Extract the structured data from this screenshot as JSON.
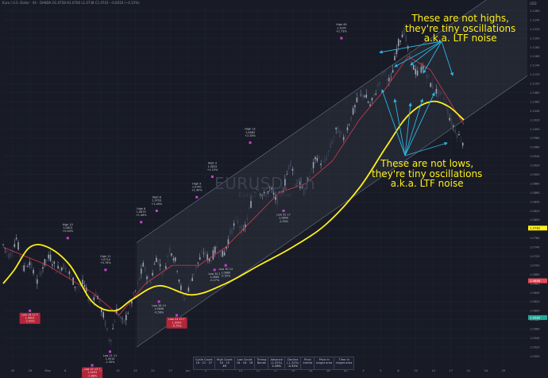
{
  "header": {
    "title": "Euro / U.S. Dollar · 4h · OANDA",
    "ohlc": "O1.0758 H1.0760 L1.0738 C1.0741 −0.0016 (−0.15%)"
  },
  "currency": "USD",
  "watermark": {
    "symbol": "EURUSD, 4h",
    "name": "Euro / U.S. Dollar"
  },
  "annotations": {
    "top": [
      "These are not highs,",
      "they're tiny oscillations",
      "a.k.a. LTF noise"
    ],
    "bottom": [
      "These are not lows,",
      "they're tiny oscillations",
      "a.k.a. LTF noise"
    ]
  },
  "colors": {
    "background": "#181b25",
    "candle_up": "#9aa3b5",
    "candle_down": "#3a3f52",
    "channel_fill": "rgba(140,150,170,0.10)",
    "channel_line": "#6b7185",
    "curve": "#ffef1a",
    "ma": "#d23b4f",
    "arrow": "#2bb6e6",
    "marker": "#c93fd6",
    "low_label_bg": "#b3263a",
    "price_tag_last": "#26a69a",
    "price_tag_red": "#e34a5a",
    "price_tag_yellow": "#ffef1a"
  },
  "chart_data": {
    "type": "line",
    "title": "EURUSD, 4h",
    "price_axis": {
      "min": 1.048,
      "max": 1.127,
      "ticks": [
        "1.1260",
        "1.1240",
        "1.1220",
        "1.1200",
        "1.1180",
        "1.1160",
        "1.1140",
        "1.1120",
        "1.1100",
        "1.1080",
        "1.1060",
        "1.1040",
        "1.1020",
        "1.1000",
        "1.0980",
        "1.0960",
        "1.0940",
        "1.0920",
        "1.0900",
        "1.0880",
        "1.0860",
        "1.0840",
        "1.0820",
        "1.0800",
        "1.0780",
        "1.0760",
        "1.0740",
        "1.0720",
        "1.0700",
        "1.0680",
        "1.0660",
        "1.0640",
        "1.0620",
        "1.0600",
        "1.0580",
        "1.0560",
        "1.0540",
        "1.0520",
        "1.0500"
      ]
    },
    "time_axis": [
      "25",
      "29",
      "May",
      "6",
      "8",
      "13",
      "15",
      "20",
      "22",
      "27",
      "Jun",
      "5",
      "7",
      "10",
      "12",
      "17",
      "19",
      "24",
      "26",
      "Jul",
      "3",
      "5",
      "8",
      "10",
      "15",
      "17",
      "22",
      "24",
      "29"
    ],
    "price_tags": [
      {
        "label": "1.0782",
        "price": 1.0782,
        "color_key": "price_tag_yellow"
      },
      {
        "label": "1.0666",
        "price": 1.0666,
        "color_key": "price_tag_red"
      },
      {
        "label": "1.0585",
        "price": 1.0585,
        "color_key": "price_tag_last"
      }
    ],
    "series": [
      {
        "name": "price",
        "points": [
          [
            0,
            1.0745
          ],
          [
            3,
            1.072
          ],
          [
            6,
            1.076
          ],
          [
            9,
            1.069
          ],
          [
            12,
            1.071
          ],
          [
            15,
            1.066
          ],
          [
            18,
            1.07
          ],
          [
            21,
            1.072
          ],
          [
            24,
            1.069
          ],
          [
            27,
            1.07
          ],
          [
            30,
            1.068
          ],
          [
            33,
            1.065
          ],
          [
            36,
            1.066
          ],
          [
            39,
            1.062
          ],
          [
            42,
            1.064
          ],
          [
            45,
            1.059
          ],
          [
            48,
            1.053
          ],
          [
            51,
            1.06
          ],
          [
            54,
            1.057
          ],
          [
            57,
            1.061
          ],
          [
            60,
            1.065
          ],
          [
            63,
            1.07
          ],
          [
            66,
            1.066
          ],
          [
            69,
            1.072
          ],
          [
            72,
            1.068
          ],
          [
            75,
            1.074
          ],
          [
            78,
            1.07
          ],
          [
            81,
            1.062
          ],
          [
            84,
            1.066
          ],
          [
            87,
            1.07
          ],
          [
            90,
            1.073
          ],
          [
            93,
            1.071
          ],
          [
            96,
            1.074
          ],
          [
            99,
            1.072
          ],
          [
            102,
            1.077
          ],
          [
            105,
            1.08
          ],
          [
            108,
            1.077
          ],
          [
            111,
            1.083
          ],
          [
            114,
            1.088
          ],
          [
            117,
            1.085
          ],
          [
            120,
            1.087
          ],
          [
            123,
            1.084
          ],
          [
            126,
            1.087
          ],
          [
            129,
            1.093
          ],
          [
            132,
            1.089
          ],
          [
            135,
            1.086
          ],
          [
            138,
            1.09
          ],
          [
            141,
            1.094
          ],
          [
            144,
            1.092
          ],
          [
            147,
            1.096
          ],
          [
            150,
            1.1
          ],
          [
            153,
            1.098
          ],
          [
            156,
            1.102
          ],
          [
            159,
            1.106
          ],
          [
            162,
            1.108
          ],
          [
            165,
            1.105
          ],
          [
            168,
            1.109
          ],
          [
            171,
            1.113
          ],
          [
            174,
            1.11
          ],
          [
            177,
            1.118
          ],
          [
            180,
            1.122
          ],
          [
            183,
            1.115
          ],
          [
            186,
            1.112
          ],
          [
            189,
            1.114
          ],
          [
            192,
            1.11
          ],
          [
            195,
            1.108
          ],
          [
            198,
            1.107
          ],
          [
            201,
            1.102
          ],
          [
            204,
            1.099
          ],
          [
            207,
            1.097
          ]
        ]
      },
      {
        "name": "moving-average",
        "points": [
          [
            0,
            1.074
          ],
          [
            20,
            1.07
          ],
          [
            40,
            1.064
          ],
          [
            52,
            1.059
          ],
          [
            64,
            1.066
          ],
          [
            76,
            1.07
          ],
          [
            88,
            1.07
          ],
          [
            100,
            1.074
          ],
          [
            112,
            1.08
          ],
          [
            124,
            1.086
          ],
          [
            136,
            1.088
          ],
          [
            148,
            1.093
          ],
          [
            160,
            1.102
          ],
          [
            172,
            1.109
          ],
          [
            182,
            1.116
          ],
          [
            192,
            1.113
          ],
          [
            207,
            1.101
          ]
        ]
      },
      {
        "name": "trend-curve",
        "points": [
          [
            0,
            1.066
          ],
          [
            5,
            1.069
          ],
          [
            12,
            1.074
          ],
          [
            20,
            1.074
          ],
          [
            30,
            1.07
          ],
          [
            40,
            1.062
          ],
          [
            50,
            1.06
          ],
          [
            58,
            1.0625
          ],
          [
            70,
            1.0655
          ],
          [
            85,
            1.0635
          ],
          [
            100,
            1.066
          ],
          [
            115,
            1.07
          ],
          [
            130,
            1.074
          ],
          [
            145,
            1.079
          ],
          [
            160,
            1.087
          ],
          [
            172,
            1.096
          ],
          [
            182,
            1.103
          ],
          [
            192,
            1.106
          ],
          [
            200,
            1.105
          ],
          [
            207,
            1.102
          ]
        ]
      }
    ],
    "channel": {
      "upper": [
        [
          60,
          1.075
        ],
        [
          207,
          1.125
        ]
      ],
      "lower": [
        [
          60,
          1.052
        ],
        [
          207,
          1.102
        ]
      ]
    },
    "pivot_labels": [
      {
        "kind": "high",
        "text": [
          "High 10",
          "1.0813",
          "+0.44%"
        ],
        "x": 29,
        "price": 1.076
      },
      {
        "kind": "low",
        "text": [
          "Low 16 12 T",
          "1.0602",
          "-1.00%"
        ],
        "x": 12,
        "price": 1.06,
        "boxed": true
      },
      {
        "kind": "high",
        "text": [
          "High 11",
          "1.0714",
          "+0.76%"
        ],
        "x": 46,
        "price": 1.069
      },
      {
        "kind": "low",
        "text": [
          "Low 21 11",
          "1.0510",
          "-1.50%"
        ],
        "x": 48,
        "price": 1.051
      },
      {
        "kind": "low",
        "text": [
          "Low 22 13 T",
          "1.0493",
          "-1.68%"
        ],
        "x": 40,
        "price": 1.048,
        "boxed": true
      },
      {
        "kind": "high",
        "text": [
          "High 6",
          "1.0675",
          "+1.46%"
        ],
        "x": 62,
        "price": 1.0795
      },
      {
        "kind": "high",
        "text": [
          "High 8",
          "1.0703",
          "+1.40%"
        ],
        "x": 69,
        "price": 1.082
      },
      {
        "kind": "low",
        "text": [
          "Low 26 14",
          "1.0606",
          "-0.56%"
        ],
        "x": 70,
        "price": 1.062
      },
      {
        "kind": "high",
        "text": [
          "High 9",
          "1.0740",
          "+1.40%"
        ],
        "x": 87,
        "price": 1.085
      },
      {
        "kind": "low",
        "text": [
          "Low 23 13 T",
          "1.0595",
          "-0.75%"
        ],
        "x": 78,
        "price": 1.059,
        "boxed": true
      },
      {
        "kind": "low",
        "text": [
          "Low 30 1",
          "1.0665",
          "-0.27%"
        ],
        "x": 95,
        "price": 1.069
      },
      {
        "kind": "low",
        "text": [
          "Low 30 14",
          "1.0680",
          "-0.55%"
        ],
        "x": 100,
        "price": 1.07
      },
      {
        "kind": "high",
        "text": [
          "High 3",
          "1.0815",
          "+1.10%"
        ],
        "x": 94,
        "price": 1.0895
      },
      {
        "kind": "high",
        "text": [
          "High 13",
          "1.0883",
          "+2.28%"
        ],
        "x": 111,
        "price": 1.097
      },
      {
        "kind": "low",
        "text": [
          "Low 52 17",
          "1.0840",
          "-1.00%"
        ],
        "x": 126,
        "price": 1.082
      },
      {
        "kind": "high",
        "text": [
          "High 49",
          "1.1005",
          "+1.73%"
        ],
        "x": 152,
        "price": 1.12
      }
    ],
    "stats_table": {
      "headers": [
        [
          "Cycle Count",
          "16 · 21 · 37"
        ],
        [
          "High Count",
          "18 · 19"
        ],
        [
          "Low Count",
          "18 · 16 · 18"
        ],
        [
          "Timing",
          "Bands"
        ],
        [
          "Advance",
          "(1.05%)"
        ],
        [
          "Decline",
          "(-1.32%)"
        ],
        [
          "Price",
          "Inertia"
        ],
        [
          "Price in",
          "target area"
        ],
        [
          "Time in",
          "target area"
        ]
      ],
      "values": [
        "",
        "49",
        "",
        "",
        "2.26%",
        "-0.31%",
        "",
        "",
        ""
      ]
    }
  }
}
